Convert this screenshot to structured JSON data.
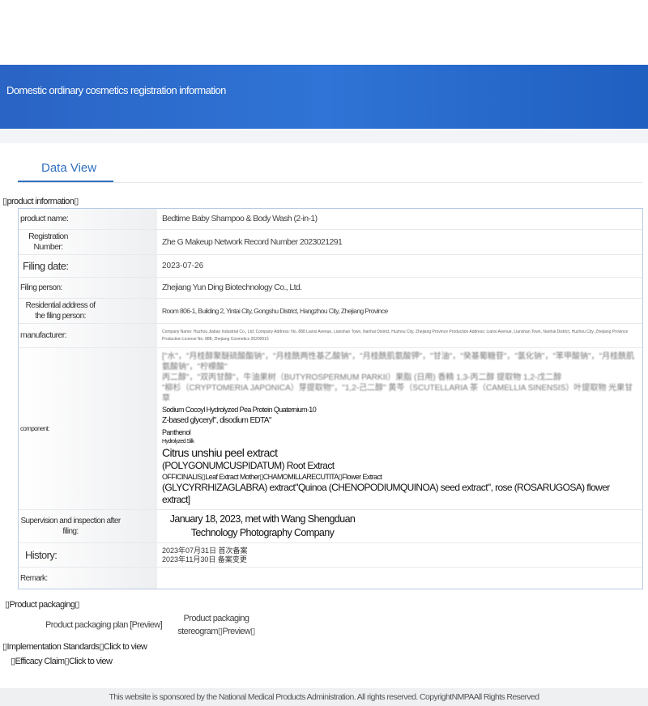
{
  "header": {
    "title": "Domestic ordinary cosmetics registration information"
  },
  "tabs": [
    {
      "label": "Data View"
    }
  ],
  "product_info": {
    "heading": "▯product information▯",
    "rows": [
      {
        "label": "product name:",
        "value": "Bedtime Baby Shampoo & Body Wash (2-in-1)"
      },
      {
        "label": "Registration Number:",
        "value": "Zhe G Makeup Network Record Number 2023021291"
      },
      {
        "label": "Filing date:",
        "value": "2023-07-26"
      },
      {
        "label": "Filing person:",
        "value": "Zhejiang Yun Ding Biotechnology Co., Ltd."
      },
      {
        "label": "Residential address of the filing person:",
        "value": "Room 806-1, Building 2, Yintai City, Gongshu District, Hangzhou City, Zhejiang Province"
      },
      {
        "label": "manufacturer:",
        "value": "Company Name: Huzhou Jiabao Industrial Co., Ltd; Company Address: No. 888 Lianxi Avenue, Lianshan Town, Nanhai District, Huzhou City, Zhejiang Province Production Address: Lianxi Avenue, Lianshan Town, Nanhai District, Huzhou City, Zhejiang Province Production License No. 888; Zhejiang Cosmetics 20200015"
      },
      {
        "label": "component:",
        "value": ""
      },
      {
        "label": "Supervision and inspection after filing:",
        "value": "January 18, 2023, met with Wang Shengduan Technology Photography Company"
      },
      {
        "label": "History:",
        "value": "2023年07月31日 首次备案\n2023年11月30日 备案变更"
      },
      {
        "label": "Remark:",
        "value": ""
      }
    ],
    "component": {
      "line1": "[\"水\"，\"月桂醇聚醚硫酸酯钠\"，\"月桂酰两性基乙酸钠\"，\"月桂酰肌氨酸钾\"，\"甘油\"，\"癸基葡糖苷\"，\"氯化钠\"，\"苯甲酸钠\"，\"月桂酰肌氨酸钠\"，\"柠檬酸\"",
      "line2": "丙二醇\"，\"双丙甘醇\"，牛油果树（BUTYROSPERMUM PARKII）果脂 (日用) 香精 1,3-丙二醇 提取物 1,2-戊二醇",
      "line3": "\"柳杉（CRYPTOMERIA JAPONICA）芽提取物\"，\"1,2-己二醇\" 黄芩（SCUTELLARIA 茶（CAMELLIA SINENSIS）叶提取物 光果甘草",
      "overlays": [
        "Sodium Cocoyl Hydrolyzed Pea Protein Quaternium-10",
        "Z-based glyceryl\", disodium EDTA\"",
        "Panthenol",
        "Hydrolyzed Silk",
        "Citrus unshiu peel extract",
        "(POLYGONUMCUSPIDATUM) Root Extract",
        "OFFICINALIS▯Leaf Extract Mother▯CHAMOMILLARECUTITA▯Flower Extract",
        "(GLYCYRRHIZAGLABRA) extract\"Quinoa (CHENOPODIUMQUINOA) seed extract\", rose (ROSARUGOSA) flower extract]"
      ]
    }
  },
  "packaging": {
    "heading": "▯Product packaging▯",
    "plan": "Product packaging plan [Preview]",
    "stereogram_line1": "Product packaging",
    "stereogram_line2": "stereogram▯Preview▯"
  },
  "standards": "▯Implementation Standards▯Click to view",
  "efficacy": "▯Efficacy Claim▯Click to view",
  "footer": "This website is sponsored by the National Medical Products Administration. All rights reserved. CopyrightNMPAAll Rights Reserved"
}
